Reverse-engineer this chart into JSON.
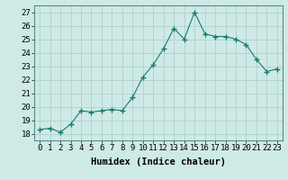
{
  "x": [
    0,
    1,
    2,
    3,
    4,
    5,
    6,
    7,
    8,
    9,
    10,
    11,
    12,
    13,
    14,
    15,
    16,
    17,
    18,
    19,
    20,
    21,
    22,
    23
  ],
  "y": [
    18.3,
    18.4,
    18.1,
    18.7,
    19.7,
    19.6,
    19.7,
    19.8,
    19.7,
    20.7,
    22.2,
    23.1,
    24.3,
    25.8,
    25.0,
    27.0,
    25.4,
    25.2,
    25.2,
    25.0,
    24.6,
    23.5,
    22.6,
    22.8
  ],
  "x_ticks": [
    0,
    1,
    2,
    3,
    4,
    5,
    6,
    7,
    8,
    9,
    10,
    11,
    12,
    13,
    14,
    15,
    16,
    17,
    18,
    19,
    20,
    21,
    22,
    23
  ],
  "y_ticks": [
    18,
    19,
    20,
    21,
    22,
    23,
    24,
    25,
    26,
    27
  ],
  "ylim": [
    17.5,
    27.5
  ],
  "xlim": [
    -0.5,
    23.5
  ],
  "xlabel": "Humidex (Indice chaleur)",
  "line_color": "#1a7a6e",
  "marker": "+",
  "marker_size": 4,
  "background_color": "#ceeae6",
  "grid_color": "#b0d0cc",
  "tick_fontsize": 6.5,
  "xlabel_fontsize": 7.5
}
